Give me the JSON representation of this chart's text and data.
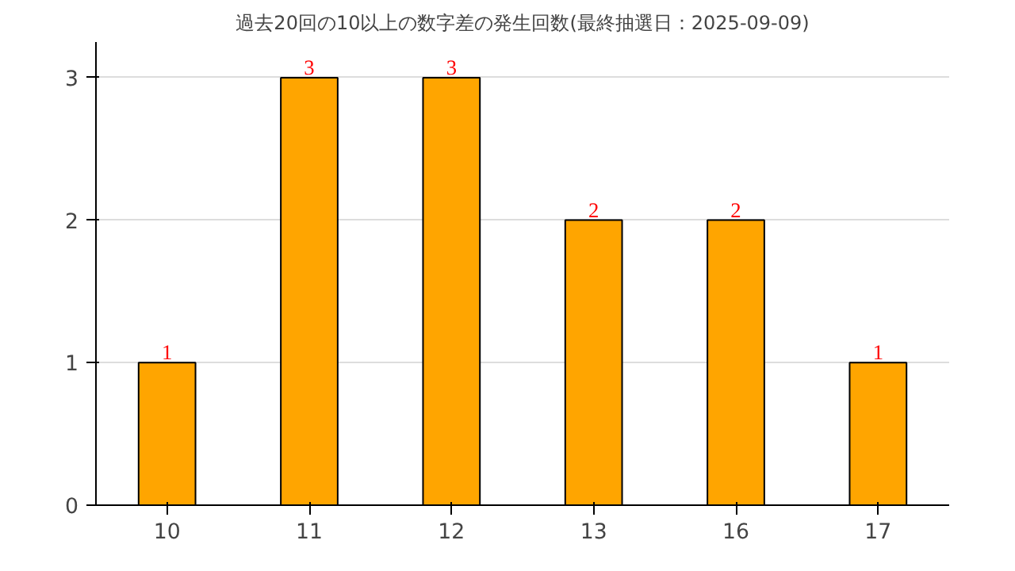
{
  "chart_data": {
    "type": "bar",
    "title": "過去20回の10以上の数字差の発生回数(最終抽選日：2025-09-09)",
    "categories": [
      "10",
      "11",
      "12",
      "13",
      "16",
      "17"
    ],
    "values": [
      1,
      3,
      3,
      2,
      2,
      1
    ],
    "color": "#ffa500",
    "ylim": [
      0,
      3.25
    ],
    "yticks": [
      0,
      1,
      2,
      3
    ],
    "grid": "y",
    "data_labels": true
  }
}
